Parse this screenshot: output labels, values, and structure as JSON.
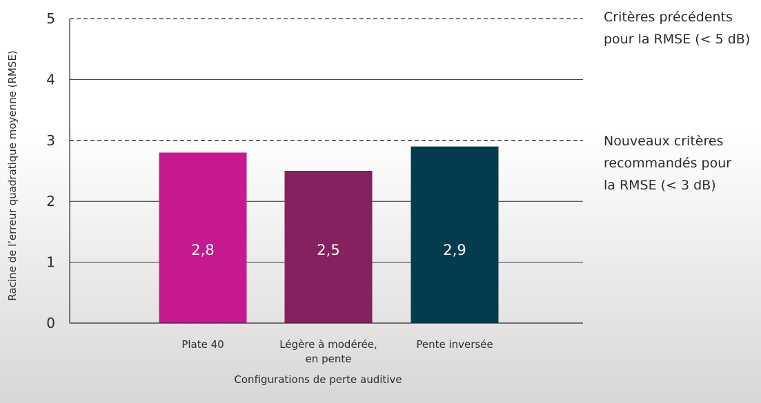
{
  "chart_data": {
    "type": "bar",
    "categories": [
      [
        "Plate 40"
      ],
      [
        "Légère à modérée,",
        "en pente"
      ],
      [
        "Pente inversée"
      ]
    ],
    "values": [
      2.8,
      2.5,
      2.9
    ],
    "value_labels": [
      "2,8",
      "2,5",
      "2,9"
    ],
    "bar_colors": [
      "#c5198d",
      "#86215f",
      "#023c4e"
    ],
    "xlabel": "Configurations de perte auditive",
    "ylabel": "Racine de l’erreur quadratique moyenne (RMSE)",
    "ylim": [
      0,
      5
    ],
    "yticks": [
      0,
      1,
      2,
      3,
      4,
      5
    ],
    "grid": true,
    "reference_lines": [
      {
        "value": 5,
        "style": "dashed",
        "label": [
          "Critères précédents",
          "pour la RMSE (< 5 dB)"
        ]
      },
      {
        "value": 3,
        "style": "dashed",
        "label": [
          "Nouveaux critères",
          "recommandés pour",
          "la RMSE (< 3 dB)"
        ]
      }
    ]
  }
}
